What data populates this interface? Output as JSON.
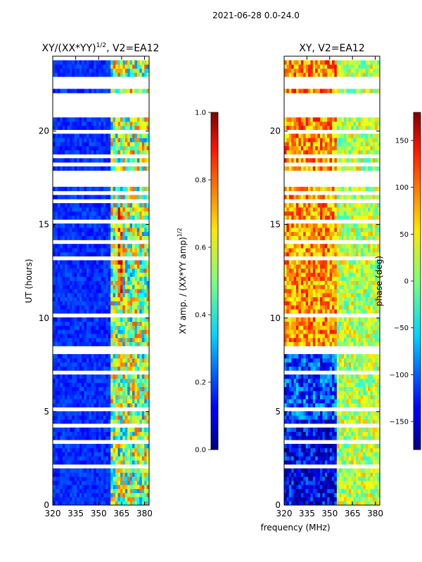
{
  "figure": {
    "suptitle": "2021-06-28 0.0-24.0",
    "xlabel": "frequency (MHz)"
  },
  "chart_data": [
    {
      "type": "heatmap",
      "title_main": "XY/(XX*YY)",
      "title_sup": "1/2",
      "title_tail": ", V2=EA12",
      "ylabel": "UT (hours)",
      "x_ticks": [
        "320",
        "335",
        "350",
        "365",
        "380"
      ],
      "y_ticks": [
        "0",
        "5",
        "10",
        "15",
        "20"
      ],
      "xlim": [
        320,
        383
      ],
      "ylim": [
        0,
        24
      ],
      "colorbar": {
        "label_main": "XY amp. / (XX*YY amp)",
        "label_sup": "1/2",
        "range": [
          0.0,
          1.0
        ],
        "ticks": [
          "0.0",
          "0.2",
          "0.4",
          "0.6",
          "0.8",
          "1.0"
        ],
        "colormap": "jet"
      }
    },
    {
      "type": "heatmap",
      "title": "XY, V2=EA12",
      "x_ticks": [
        "320",
        "335",
        "350",
        "365",
        "380"
      ],
      "y_ticks": [
        "0",
        "5",
        "10",
        "15",
        "20"
      ],
      "xlim": [
        320,
        383
      ],
      "ylim": [
        0,
        24
      ],
      "colorbar": {
        "label": "phase (deg)",
        "range": [
          -180,
          180
        ],
        "ticks": [
          "−150",
          "−100",
          "−50",
          "0",
          "50",
          "100",
          "150"
        ],
        "colormap": "jet"
      }
    }
  ],
  "flagged_ut_gaps_hours": [
    [
      0.45,
      0.5
    ],
    [
      1.45,
      1.55
    ],
    [
      1.95,
      2.2
    ],
    [
      3.0,
      3.1
    ],
    [
      3.3,
      3.4
    ],
    [
      4.15,
      4.4
    ],
    [
      4.55,
      4.6
    ],
    [
      5.05,
      5.15
    ],
    [
      5.85,
      5.95
    ],
    [
      7.0,
      7.1
    ],
    [
      8.15,
      8.4
    ],
    [
      8.55,
      8.6
    ],
    [
      9.35,
      9.45
    ],
    [
      10.1,
      10.35
    ],
    [
      11.25,
      11.35
    ],
    [
      13.2,
      13.4
    ],
    [
      13.7,
      13.8
    ],
    [
      14.05,
      14.15
    ],
    [
      15.1,
      15.2
    ],
    [
      16.2,
      16.3
    ],
    [
      16.6,
      16.75
    ],
    [
      17.0,
      17.85
    ],
    [
      18.1,
      18.35
    ],
    [
      18.6,
      18.7
    ],
    [
      18.9,
      19.05
    ],
    [
      19.75,
      20.0
    ],
    [
      20.8,
      22.05
    ],
    [
      22.25,
      22.95
    ],
    [
      23.25,
      23.3
    ],
    [
      23.55,
      23.6
    ],
    [
      23.85,
      23.9
    ]
  ],
  "phase_regions": [
    {
      "t0": 0,
      "t1": 4.5,
      "f0": 320,
      "f1": 355,
      "phase": -140
    },
    {
      "t0": 4.5,
      "t1": 8.2,
      "f0": 320,
      "f1": 355,
      "phase": -110
    },
    {
      "t0": 8.2,
      "t1": 24,
      "f0": 320,
      "f1": 355,
      "phase": 80
    },
    {
      "t0": 0,
      "t1": 24,
      "f0": 355,
      "f1": 383,
      "phase": 20
    }
  ]
}
